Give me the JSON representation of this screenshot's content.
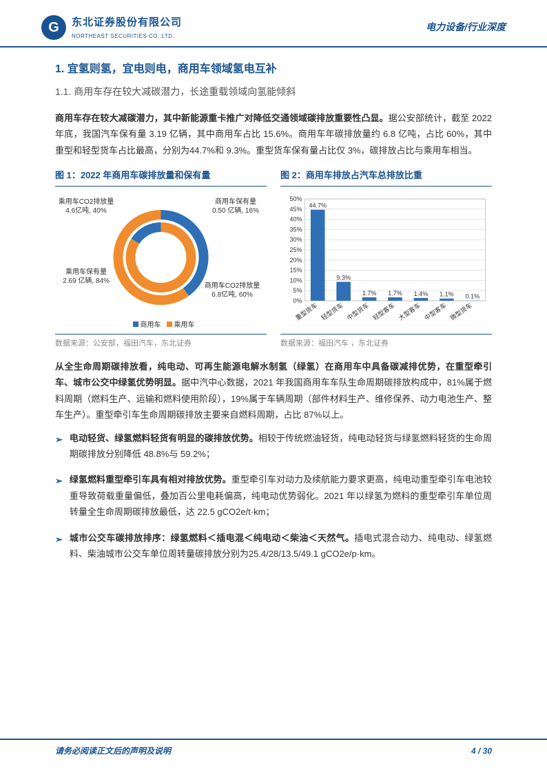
{
  "header": {
    "company_cn": "东北证券股份有限公司",
    "company_en": "NORTHEAST SECURITIES CO.,LTD.",
    "logo_glyph": "G",
    "right_text": "电力设备/行业深度"
  },
  "section": {
    "number": "1.",
    "title": "宜氢则氢，宜电则电，商用车领域氢电互补",
    "sub_number": "1.1.",
    "sub_title": "商用车存在较大减碳潜力，长途重载领域向氢能倾斜"
  },
  "para1_bold": "商用车存在较大减碳潜力，其中新能源重卡推广对降低交通领域碳排放重要性凸显。",
  "para1_body": "据公安部统计，截至 2022 年底，我国汽车保有量 3.19 亿辆，其中商用车占比 15.6%。商用车年碳排放量约 6.8 亿吨，占比 60%，其中重型和轻型货车占比最高，分别为44.7%和 9.3%。重型货车保有量占比仅 3%，碳排放占比与乘用车相当。",
  "chart1": {
    "title": "图 1：2022 年商用车碳排放量和保有量",
    "type": "donut",
    "outer_ring": {
      "series_name": "CO2排放量",
      "slices": [
        {
          "label": "乘用车CO2排放量\n4.6亿吨, 40%",
          "value": 40,
          "color": "#2f6fb5"
        },
        {
          "label": "商用车CO2排放量\n6.8亿吨, 60%",
          "value": 60,
          "color": "#f08c2e"
        }
      ]
    },
    "inner_ring": {
      "series_name": "保有量",
      "slices": [
        {
          "label": "乘用车保有量\n2.69 亿辆, 84%",
          "value": 84,
          "color": "#f08c2e"
        },
        {
          "label": "商用车保有量\n0.50 亿辆, 16%",
          "value": 16,
          "color": "#2f6fb5"
        }
      ]
    },
    "legend": [
      {
        "label": "商用车",
        "color": "#2f6fb5"
      },
      {
        "label": "乘用车",
        "color": "#f08c2e"
      }
    ],
    "source": "数据来源：公安部，福田汽车，东北证券"
  },
  "chart2": {
    "title": "图 2：商用车排放占汽车总排放比重",
    "type": "bar",
    "categories": [
      "重型货车",
      "轻型货车",
      "中型货车",
      "轻型客车",
      "大型客车",
      "中型客车",
      "微型货车"
    ],
    "values": [
      44.7,
      9.3,
      1.7,
      1.7,
      1.4,
      1.1,
      0.1
    ],
    "value_labels": [
      "44.7%",
      "9.3%",
      "1.7%",
      "1.7%",
      "1.4%",
      "1.1%",
      "0.1%"
    ],
    "bar_color": "#2f6fb5",
    "ylim": [
      0,
      50
    ],
    "ytick_step": 5,
    "yticks": [
      "0%",
      "5%",
      "10%",
      "15%",
      "20%",
      "25%",
      "30%",
      "35%",
      "40%",
      "45%",
      "50%"
    ],
    "grid_color": "#cccccc",
    "background_color": "#ffffff",
    "source": "数据来源：福田汽车 ，东北证券"
  },
  "para2_bold": "从全生命周期碳排放看，纯电动、可再生能源电解水制氢（绿氢）在商用车中具备碳减排优势，在重型牵引车、城市公交中绿氢优势明显。",
  "para2_body": "据中汽中心数据，2021 年我国商用车车队生命周期碳排放构成中，81%属于燃料周期（燃料生产、运输和燃料使用阶段），19%属于车辆周期（部件材料生产、维修保养、动力电池生产、整车生产）。重型牵引车生命周期碳排放主要来自燃料周期，占比 87%以上。",
  "bullets": [
    {
      "bold": "电动轻货、绿氢燃料轻货有明显的碳排放优势。",
      "body": "相较于传统燃油轻货，纯电动轻货与绿氢燃料轻货的生命周期碳排放分别降低 48.8%与 59.2%；"
    },
    {
      "bold": "绿氢燃料重型牵引车具有相对排放优势。",
      "body": "重型牵引车对动力及续航能力要求更高，纯电动重型牵引车电池较重导致荷载重量偏低，叠加百公里电耗偏高，纯电动优势弱化。2021 年以绿氢为燃料的重型牵引车单位周转量全生命周期碳排放最低，达 22.5 gCO2e/t·km；"
    },
    {
      "bold": "城市公交车碳排放排序：绿氢燃料＜插电混＜纯电动＜柴油＜天然气。",
      "body": "插电式混合动力、纯电动、绿氢燃料、柴油城市公交车单位周转量碳排放分别为25.4/28/13.5/49.1 gCO2e/p·km。"
    }
  ],
  "footer": {
    "left": "请务必阅读正文后的声明及说明",
    "right": "4 / 30"
  }
}
